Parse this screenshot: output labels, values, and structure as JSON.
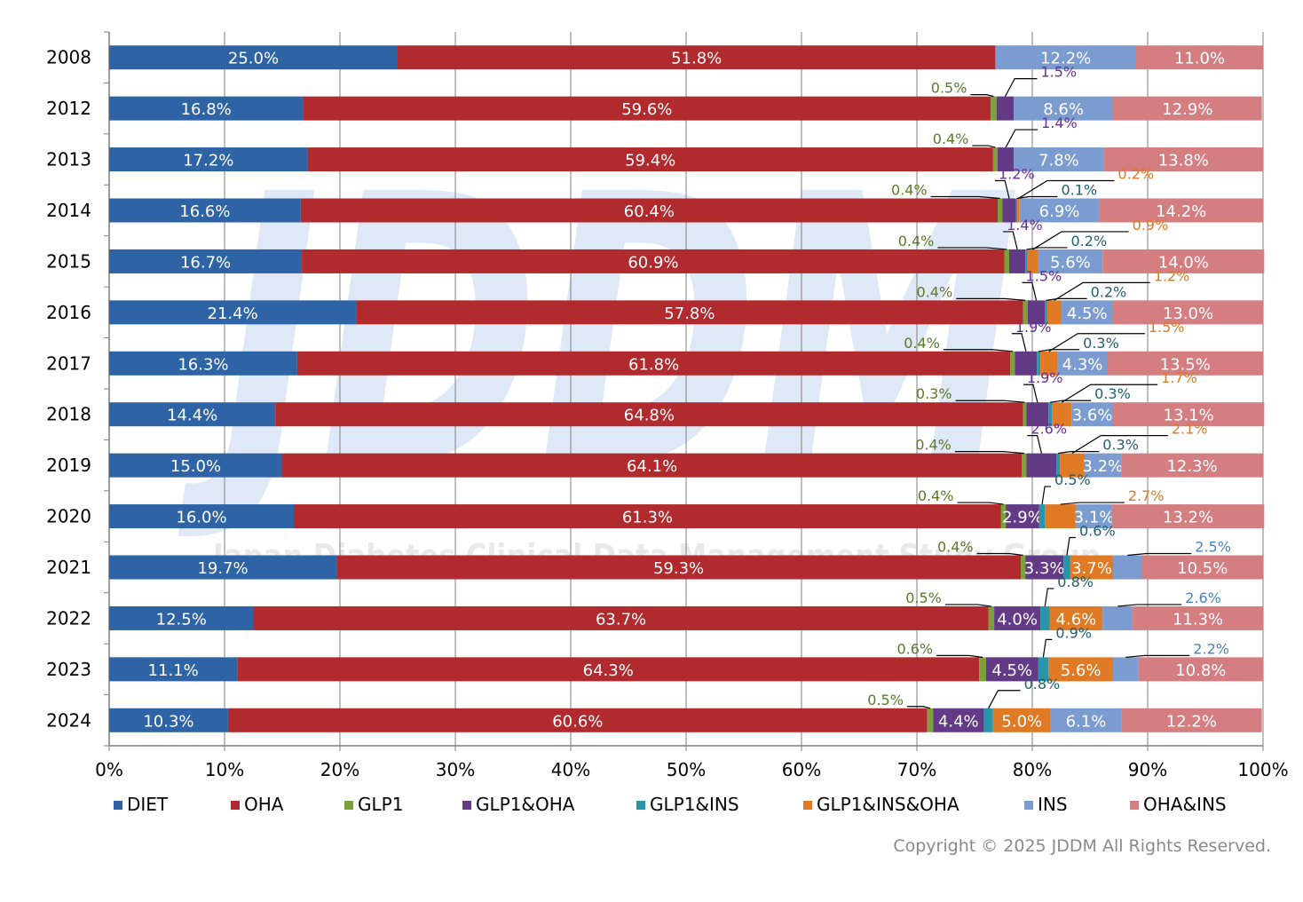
{
  "chart_data": {
    "type": "bar",
    "orientation": "horizontal",
    "stacked": true,
    "normalized": true,
    "categories": [
      "2008",
      "2012",
      "2013",
      "2014",
      "2015",
      "2016",
      "2017",
      "2018",
      "2019",
      "2020",
      "2021",
      "2022",
      "2023",
      "2024"
    ],
    "series": [
      {
        "name": "DIET",
        "color": "#2e64a6",
        "values": [
          25.0,
          16.8,
          17.2,
          16.6,
          16.7,
          21.4,
          16.3,
          14.4,
          15.0,
          16.0,
          19.7,
          12.5,
          11.1,
          10.3
        ],
        "labels": [
          "25.0%",
          "16.8%",
          "17.2%",
          "16.6%",
          "16.7%",
          "21.4%",
          "16.3%",
          "14.4%",
          "15.0%",
          "16.0%",
          "19.7%",
          "12.5%",
          "11.1%",
          "10.3%"
        ]
      },
      {
        "name": "OHA",
        "color": "#b02a2e",
        "values": [
          51.8,
          59.6,
          59.4,
          60.4,
          60.9,
          57.8,
          61.8,
          64.8,
          64.1,
          61.3,
          59.3,
          63.7,
          64.3,
          60.6
        ],
        "labels": [
          "51.8%",
          "59.6%",
          "59.4%",
          "60.4%",
          "60.9%",
          "57.8%",
          "61.8%",
          "64.8%",
          "64.1%",
          "61.3%",
          "59.3%",
          "63.7%",
          "64.3%",
          "60.6%"
        ]
      },
      {
        "name": "GLP1",
        "color": "#7ea03c",
        "values": [
          0,
          0.5,
          0.4,
          0.4,
          0.4,
          0.4,
          0.4,
          0.3,
          0.4,
          0.4,
          0.4,
          0.5,
          0.6,
          0.5
        ],
        "labels": [
          "",
          "0.5%",
          "0.4%",
          "0.4%",
          "0.4%",
          "0.4%",
          "0.4%",
          "0.3%",
          "0.4%",
          "0.4%",
          "0.4%",
          "0.5%",
          "0.6%",
          "0.5%"
        ]
      },
      {
        "name": "GLP1&OHA",
        "color": "#623a86",
        "values": [
          0,
          1.5,
          1.4,
          1.2,
          1.4,
          1.5,
          1.9,
          1.9,
          2.6,
          2.9,
          3.3,
          4.0,
          4.5,
          4.4
        ],
        "labels": [
          "",
          "1.5%",
          "1.4%",
          "1.2%",
          "1.4%",
          "1.5%",
          "1.9%",
          "1.9%",
          "2.6%",
          "2.9%",
          "3.3%",
          "4.0%",
          "4.5%",
          "4.4%"
        ]
      },
      {
        "name": "GLP1&INS",
        "color": "#2a94aa",
        "values": [
          0,
          0,
          0,
          0.1,
          0.2,
          0.2,
          0.3,
          0.3,
          0.3,
          0.5,
          0.6,
          0.8,
          0.9,
          0.8
        ],
        "labels": [
          "",
          "",
          "",
          "0.1%",
          "0.2%",
          "0.2%",
          "0.3%",
          "0.3%",
          "0.3%",
          "0.5%",
          "0.6%",
          "0.8%",
          "0.9%",
          "0.8%"
        ]
      },
      {
        "name": "GLP1&INS&OHA",
        "color": "#e07a24",
        "values": [
          0,
          0,
          0,
          0.2,
          0.9,
          1.2,
          1.5,
          1.7,
          2.1,
          2.7,
          3.7,
          4.6,
          5.6,
          5.0
        ],
        "labels": [
          "",
          "",
          "",
          "0.2%",
          "0.9%",
          "1.2%",
          "1.5%",
          "1.7%",
          "2.1%",
          "2.7%",
          "3.7%",
          "4.6%",
          "5.6%",
          "5.0%"
        ]
      },
      {
        "name": "INS",
        "color": "#7b9cd0",
        "values": [
          12.2,
          8.6,
          7.8,
          6.9,
          5.6,
          4.5,
          4.3,
          3.6,
          3.2,
          3.1,
          2.5,
          2.6,
          2.2,
          6.1
        ],
        "labels": [
          "12.2%",
          "8.6%",
          "7.8%",
          "6.9%",
          "5.6%",
          "4.5%",
          "4.3%",
          "3.6%",
          "3.2%",
          "3.1%",
          "2.5%",
          "2.6%",
          "2.2%",
          "6.1%"
        ]
      },
      {
        "name": "OHA&INS",
        "color": "#d47e82",
        "values": [
          11.0,
          12.9,
          13.8,
          14.2,
          14.0,
          13.0,
          13.5,
          13.1,
          12.3,
          13.2,
          10.5,
          11.3,
          10.8,
          12.2
        ],
        "labels": [
          "11.0%",
          "12.9%",
          "13.8%",
          "14.2%",
          "14.0%",
          "13.0%",
          "13.5%",
          "13.1%",
          "12.3%",
          "13.2%",
          "10.5%",
          "11.3%",
          "10.8%",
          "12.2%"
        ]
      }
    ],
    "xlim": [
      0,
      100
    ],
    "xticks": [
      "0%",
      "10%",
      "20%",
      "30%",
      "40%",
      "50%",
      "60%",
      "70%",
      "80%",
      "90%",
      "100%"
    ],
    "grid": "vertical",
    "legend": "bottom"
  },
  "watermark": {
    "logo": "JDDM",
    "text": "Japan Diabetes Clinical Data Management Study Group"
  },
  "copyright": "Copyright © 2025 JDDM All Rights Reserved."
}
